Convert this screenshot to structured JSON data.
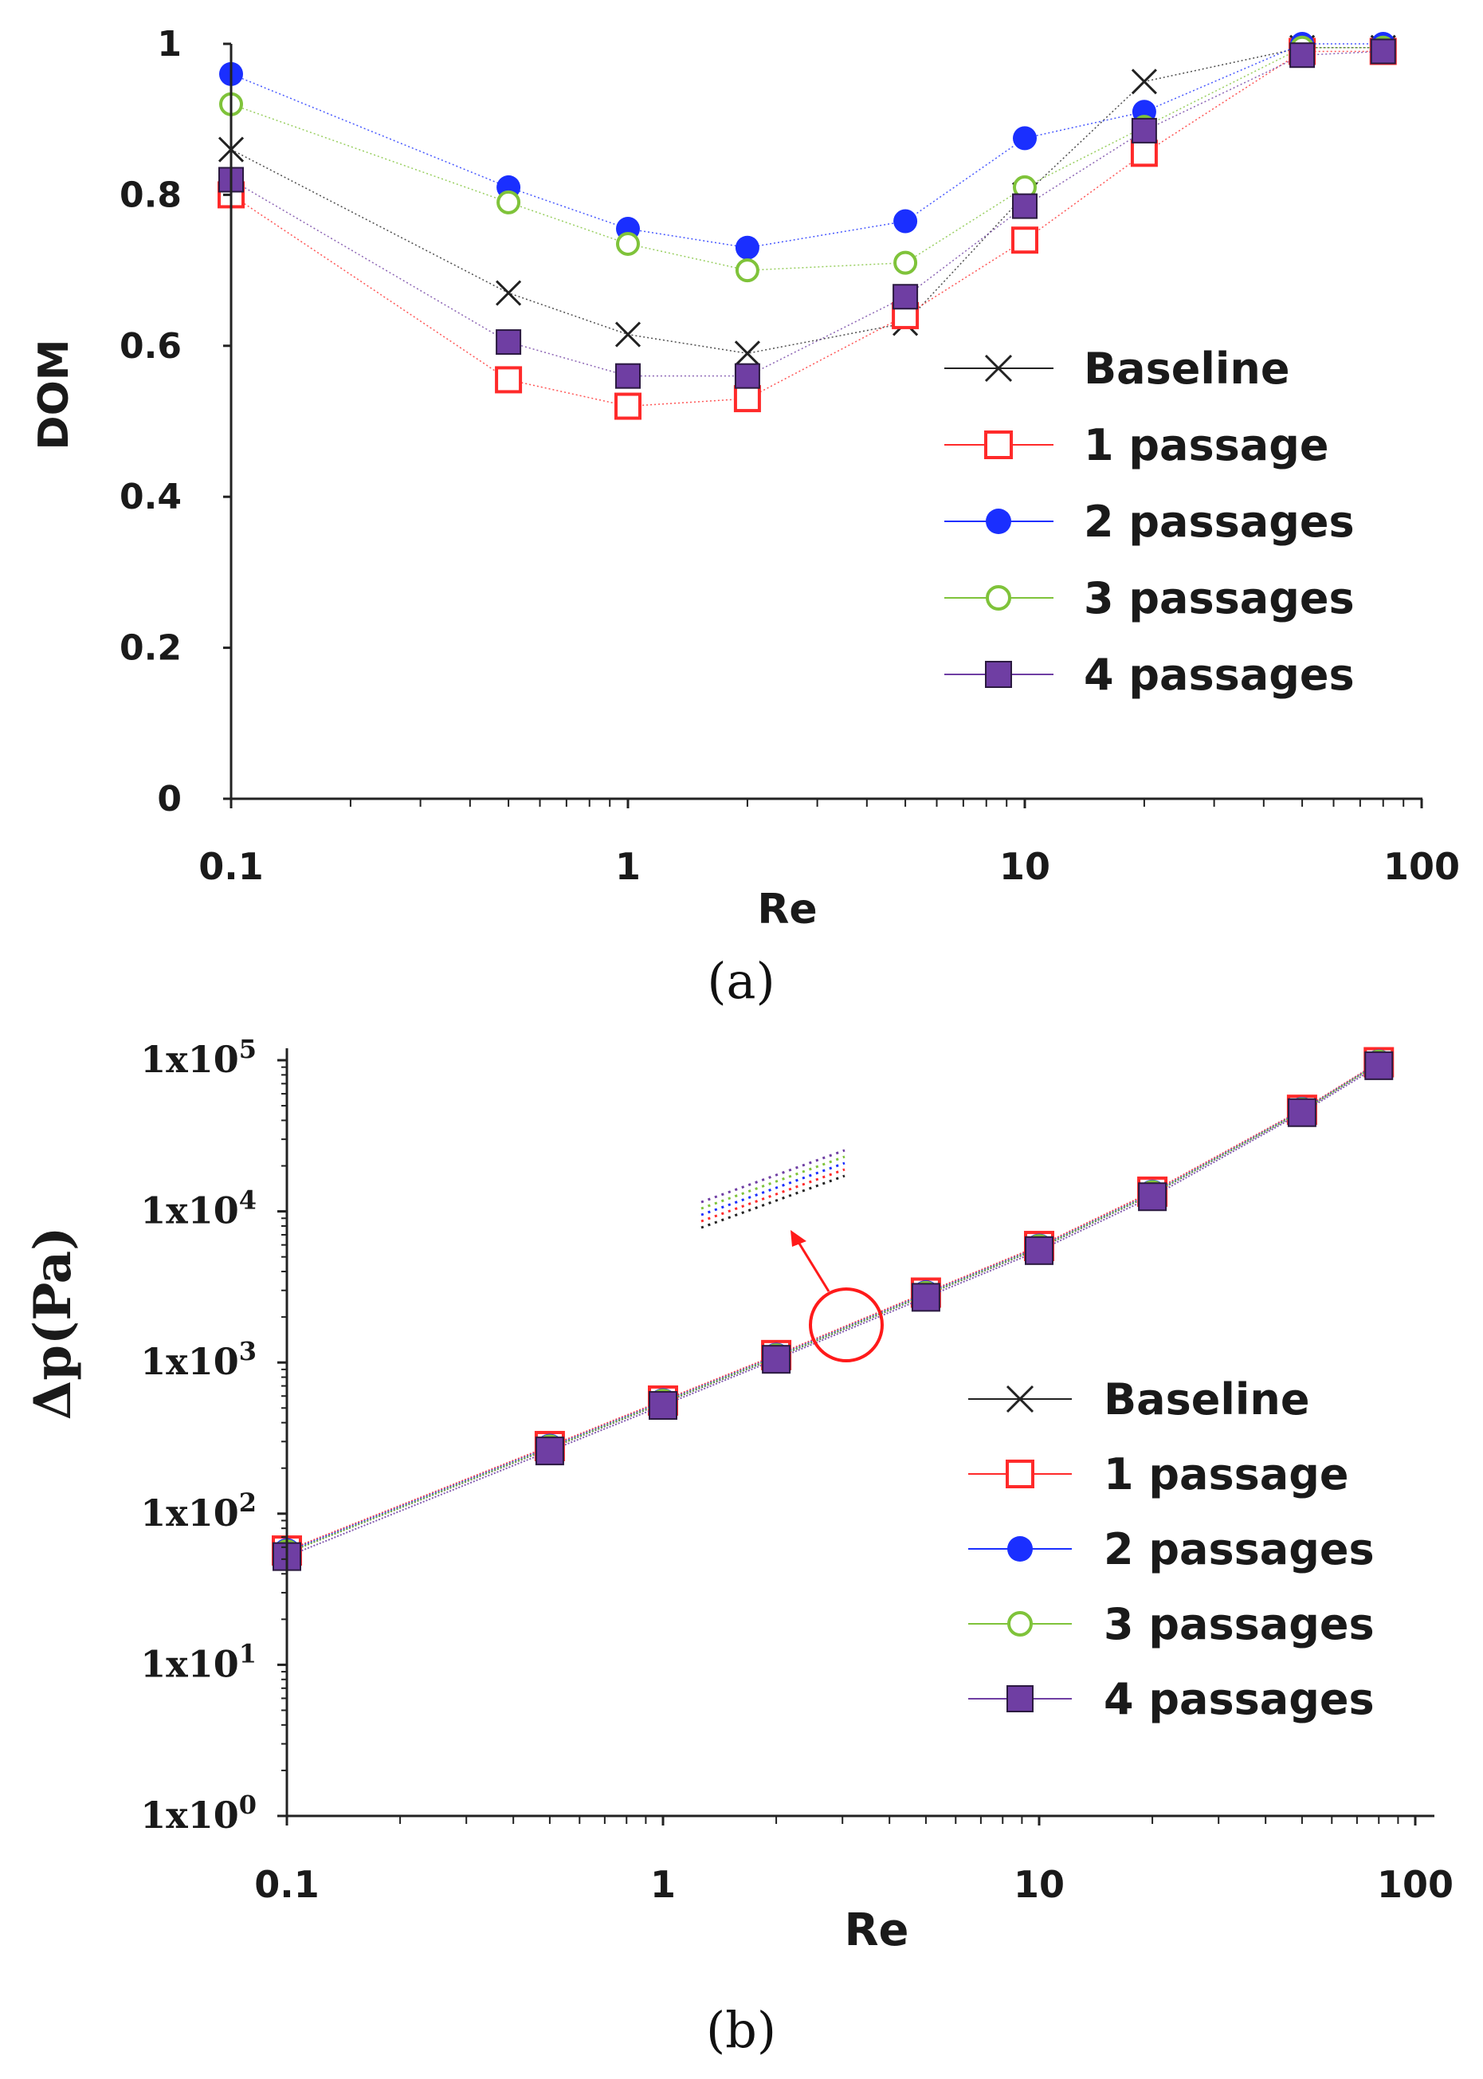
{
  "chart_data": [
    {
      "id": "a",
      "type": "line",
      "xscale": "log",
      "caption": "(a)",
      "xlabel": "Re",
      "ylabel": "DOM",
      "xlim": [
        0.1,
        100
      ],
      "ylim": [
        0,
        1
      ],
      "x_ticks": [
        {
          "value": 0.1,
          "label": "0.1"
        },
        {
          "value": 1,
          "label": "1"
        },
        {
          "value": 10,
          "label": "10"
        },
        {
          "value": 100,
          "label": "100"
        }
      ],
      "y_ticks": [
        {
          "value": 0,
          "label": "0"
        },
        {
          "value": 0.2,
          "label": "0.2"
        },
        {
          "value": 0.4,
          "label": "0.4"
        },
        {
          "value": 0.6,
          "label": "0.6"
        },
        {
          "value": 0.8,
          "label": "0.8"
        },
        {
          "value": 1,
          "label": "1"
        }
      ],
      "x": [
        0.1,
        0.5,
        1,
        2,
        5,
        10,
        20,
        50,
        80
      ],
      "series": [
        {
          "name": "Baseline",
          "marker": "x",
          "color": "#222222",
          "values": [
            0.86,
            0.67,
            0.615,
            0.59,
            0.63,
            0.8,
            0.95,
            0.995,
            0.995
          ]
        },
        {
          "name": "1 passage",
          "marker": "open-square",
          "color": "#ff2a2a",
          "values": [
            0.8,
            0.555,
            0.52,
            0.53,
            0.64,
            0.74,
            0.855,
            0.99,
            0.99
          ]
        },
        {
          "name": "2 passages",
          "marker": "filled-circle",
          "color": "#1a2fff",
          "values": [
            0.96,
            0.81,
            0.755,
            0.73,
            0.765,
            0.875,
            0.91,
            1.0,
            1.0
          ]
        },
        {
          "name": "3 passages",
          "marker": "open-circle",
          "color": "#7fc33a",
          "values": [
            0.92,
            0.79,
            0.735,
            0.7,
            0.71,
            0.81,
            0.89,
            0.995,
            0.995
          ]
        },
        {
          "name": "4 passages",
          "marker": "filled-square",
          "color": "#6f3ea3",
          "values": [
            0.82,
            0.605,
            0.56,
            0.56,
            0.665,
            0.785,
            0.885,
            0.985,
            0.99
          ]
        }
      ],
      "grid": false,
      "legend_position": "right"
    },
    {
      "id": "b",
      "type": "line",
      "xscale": "log",
      "yscale": "log",
      "caption": "(b)",
      "xlabel": "Re",
      "ylabel": "Δp(Pa)",
      "xlim": [
        0.1,
        100
      ],
      "ylim": [
        1,
        100000
      ],
      "x_ticks": [
        {
          "value": 0.1,
          "label": "0.1"
        },
        {
          "value": 1,
          "label": "1"
        },
        {
          "value": 10,
          "label": "10"
        },
        {
          "value": 100,
          "label": "100"
        }
      ],
      "y_ticks": [
        {
          "value": 1,
          "base": "1x10",
          "exp": "0"
        },
        {
          "value": 10,
          "base": "1x10",
          "exp": "1"
        },
        {
          "value": 100,
          "base": "1x10",
          "exp": "2"
        },
        {
          "value": 1000,
          "base": "1x10",
          "exp": "3"
        },
        {
          "value": 10000,
          "base": "1x10",
          "exp": "4"
        },
        {
          "value": 100000,
          "base": "1x10",
          "exp": "5"
        }
      ],
      "x": [
        0.1,
        0.5,
        1,
        2,
        5,
        10,
        20,
        50,
        80
      ],
      "series": [
        {
          "name": "Baseline",
          "marker": "x",
          "color": "#222222",
          "values": [
            55,
            270,
            540,
            1080,
            2800,
            5700,
            13000,
            46000,
            95000
          ]
        },
        {
          "name": "1 passage",
          "marker": "open-square",
          "color": "#ff2a2a",
          "values": [
            57,
            280,
            560,
            1120,
            2900,
            5900,
            13500,
            47000,
            97000
          ]
        },
        {
          "name": "2 passages",
          "marker": "filled-circle",
          "color": "#1a2fff",
          "values": [
            56,
            275,
            550,
            1100,
            2850,
            5800,
            13200,
            46500,
            96000
          ]
        },
        {
          "name": "3 passages",
          "marker": "open-circle",
          "color": "#7fc33a",
          "values": [
            55,
            272,
            545,
            1090,
            2820,
            5750,
            13100,
            46200,
            95500
          ]
        },
        {
          "name": "4 passages",
          "marker": "filled-square",
          "color": "#6f3ea3",
          "values": [
            52,
            260,
            520,
            1050,
            2700,
            5500,
            12500,
            45000,
            92000
          ]
        }
      ],
      "annotation": "zoomed inset near Re ≈ 3",
      "grid": false,
      "legend_position": "right"
    }
  ]
}
